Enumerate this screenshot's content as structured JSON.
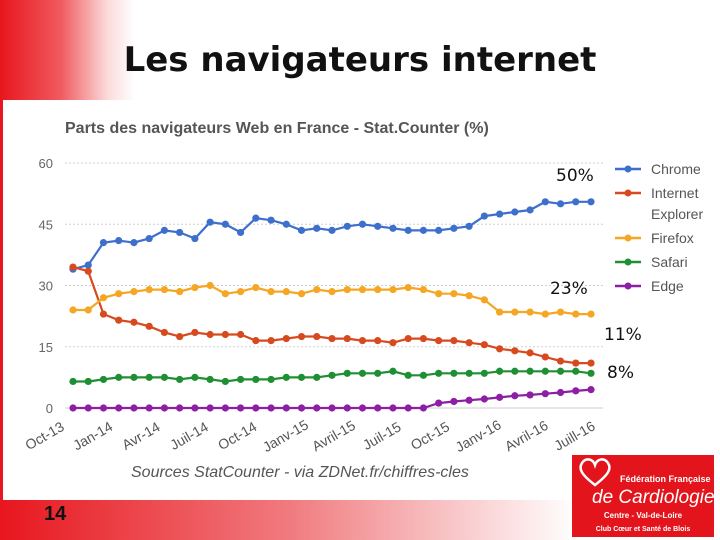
{
  "slide": {
    "title": "Les navigateurs internet",
    "page_number": "14"
  },
  "logo": {
    "line1": "Fédération Française",
    "line2": "de Cardiologie",
    "line3": "Centre - Val-de-Loire",
    "line4": "Club Cœur et Santé de Blois"
  },
  "colors": {
    "chrome": "#3d6fcc",
    "ie": "#d74a1f",
    "firefox": "#f5a623",
    "safari": "#1f8f33",
    "edge": "#8c1fa3",
    "accent_red": "#e3141b"
  },
  "chart_data": {
    "type": "line",
    "title": "Parts des navigateurs Web en France - Stat.Counter (%)",
    "source": "Sources StatCounter - via ZDNet.fr/chiffres-cles",
    "xlabel": "",
    "ylabel": "",
    "ylim": [
      0,
      60
    ],
    "yticks": [
      "0",
      "15",
      "30",
      "45",
      "60"
    ],
    "x_tick_labels": [
      "Oct-13",
      "Jan-14",
      "Avr-14",
      "Juil-14",
      "Oct-14",
      "Janv-15",
      "Avril-15",
      "Juil-15",
      "Oct-15",
      "Janv-16",
      "Avril-16",
      "Juill-16"
    ],
    "legend_position": "right",
    "series": [
      {
        "name": "Chrome",
        "legend_label": [
          "Chrome"
        ],
        "color": "#3d6fcc",
        "end_annotation": "50%",
        "values": [
          34,
          35,
          40.5,
          41,
          40.5,
          41.5,
          43.5,
          43,
          41.5,
          45.5,
          45,
          43,
          46.5,
          46,
          45,
          43.5,
          44,
          43.5,
          44.5,
          45,
          44.5,
          44,
          43.5,
          43.5,
          43.5,
          44,
          44.5,
          47,
          47.5,
          48,
          48.5,
          50.5,
          50,
          50.5,
          50.5
        ]
      },
      {
        "name": "Internet Explorer",
        "legend_label": [
          "Internet",
          "Explorer"
        ],
        "color": "#d74a1f",
        "end_annotation": "11%",
        "values": [
          34.5,
          33.5,
          23,
          21.5,
          21,
          20,
          18.5,
          17.5,
          18.5,
          18,
          18,
          18,
          16.5,
          16.5,
          17,
          17.5,
          17.5,
          17,
          17,
          16.5,
          16.5,
          16,
          17,
          17,
          16.5,
          16.5,
          16,
          15.5,
          14.5,
          14,
          13.5,
          12.5,
          11.5,
          11,
          11
        ]
      },
      {
        "name": "Firefox",
        "legend_label": [
          "Firefox"
        ],
        "color": "#f5a623",
        "end_annotation": "23%",
        "values": [
          24,
          24,
          27,
          28,
          28.5,
          29,
          29,
          28.5,
          29.5,
          30,
          28,
          28.5,
          29.5,
          28.5,
          28.5,
          28,
          29,
          28.5,
          29,
          29,
          29,
          29,
          29.5,
          29,
          28,
          28,
          27.5,
          26.5,
          23.5,
          23.5,
          23.5,
          23,
          23.5,
          23,
          23
        ]
      },
      {
        "name": "Safari",
        "legend_label": [
          "Safari"
        ],
        "color": "#1f8f33",
        "end_annotation": "8%",
        "values": [
          6.5,
          6.5,
          7,
          7.5,
          7.5,
          7.5,
          7.5,
          7,
          7.5,
          7,
          6.5,
          7,
          7,
          7,
          7.5,
          7.5,
          7.5,
          8,
          8.5,
          8.5,
          8.5,
          9,
          8,
          8,
          8.5,
          8.5,
          8.5,
          8.5,
          9,
          9,
          9,
          9,
          9,
          9,
          8.5
        ]
      },
      {
        "name": "Edge",
        "legend_label": [
          "Edge"
        ],
        "color": "#8c1fa3",
        "end_annotation": "",
        "values": [
          0,
          0,
          0,
          0,
          0,
          0,
          0,
          0,
          0,
          0,
          0,
          0,
          0,
          0,
          0,
          0,
          0,
          0,
          0,
          0,
          0,
          0,
          0,
          0,
          1.2,
          1.6,
          1.9,
          2.2,
          2.6,
          3.0,
          3.2,
          3.5,
          3.8,
          4.2,
          4.5
        ]
      }
    ]
  }
}
